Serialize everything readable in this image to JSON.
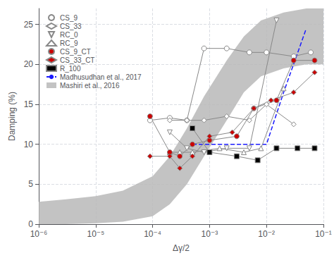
{
  "chart_data": {
    "type": "line",
    "xlabel": "Δγ/2",
    "ylabel": "Damping (%)",
    "log": "x",
    "xlim": [
      1e-06,
      0.1
    ],
    "xticks": [
      {
        "value": 1e-06,
        "label": "10⁻⁶"
      },
      {
        "value": 1e-05,
        "label": "10⁻⁵"
      },
      {
        "value": 0.0001,
        "label": "10⁻⁴"
      },
      {
        "value": 0.001,
        "label": "10⁻³"
      },
      {
        "value": 0.01,
        "label": "10⁻²"
      },
      {
        "value": 0.1,
        "label": "10⁻¹"
      }
    ],
    "ylim": [
      0,
      27
    ],
    "yticks": [
      0,
      5,
      10,
      15,
      20,
      25
    ],
    "grid": true,
    "legend": "upper left",
    "color": "#888888",
    "series": [
      {
        "name": "CS_9",
        "type": "line",
        "marker": "circle",
        "color": "#ffffff",
        "x": [
          9e-05,
          0.0002,
          0.0004,
          0.0008,
          0.002,
          0.005,
          0.01,
          0.03,
          0.06
        ],
        "values": [
          13.0,
          13.3,
          13.0,
          22.0,
          22.0,
          21.5,
          21.5,
          21.0,
          21.5
        ]
      },
      {
        "name": "CS_33",
        "type": "line",
        "marker": "diamond",
        "color": "#ffffff",
        "x": [
          0.0002,
          0.0004,
          0.0008,
          0.002,
          0.005,
          0.01,
          0.03
        ],
        "values": [
          13.0,
          13.0,
          13.0,
          13.5,
          13.0,
          15.0,
          12.5
        ]
      },
      {
        "name": "RC_0",
        "type": "line",
        "marker": "triangle_down",
        "color": "#ffffff",
        "x": [
          0.0002,
          0.0004,
          0.0008,
          0.002,
          0.005,
          0.015
        ],
        "values": [
          11.5,
          9.5,
          9.0,
          9.5,
          9.5,
          25.5
        ]
      },
      {
        "name": "RC_9",
        "type": "line",
        "marker": "triangle_up",
        "color": "#ffffff",
        "x": [
          0.0002,
          0.0003,
          0.0005,
          0.0015,
          0.004,
          0.008,
          0.02
        ],
        "values": [
          9.0,
          9.0,
          9.0,
          9.5,
          9.0,
          9.5,
          17.0
        ]
      },
      {
        "name": "CS_9_CT",
        "type": "line",
        "marker": "circle",
        "color": "#cc0000",
        "x": [
          9e-05,
          0.0002,
          0.0003,
          0.0005,
          0.001,
          0.003,
          0.006,
          0.015,
          0.03,
          0.07
        ],
        "values": [
          13.5,
          9.0,
          8.5,
          10.0,
          10.5,
          11.0,
          14.5,
          15.5,
          20.5,
          20.5
        ]
      },
      {
        "name": "CS_33_CT",
        "type": "line",
        "marker": "diamond",
        "color": "#cc0000",
        "x": [
          9e-05,
          0.0002,
          0.0003,
          0.0005,
          0.001,
          0.0025,
          0.006,
          0.012,
          0.03,
          0.07
        ],
        "values": [
          8.5,
          8.5,
          7.0,
          8.5,
          11.0,
          11.5,
          14.5,
          15.5,
          16.5,
          19.0
        ]
      },
      {
        "name": "R_100",
        "type": "line",
        "marker": "square",
        "color": "#000000",
        "x": [
          0.0005,
          0.001,
          0.003,
          0.007,
          0.015,
          0.035,
          0.07
        ],
        "values": [
          12.0,
          9.0,
          8.5,
          8.0,
          9.5,
          9.5,
          9.5
        ]
      },
      {
        "name": "Madhusudhan et al., 2017",
        "type": "line",
        "line_style": "dashed",
        "color": "#1a1aff",
        "x": [
          0.0005,
          0.001,
          0.002,
          0.005,
          0.01,
          0.02,
          0.05
        ],
        "values": [
          10.0,
          10.0,
          10.0,
          10.0,
          10.0,
          16.5,
          24.5
        ]
      },
      {
        "name": "Mashiri et al., 2016",
        "type": "band",
        "color": "#b8b8b8",
        "x": [
          1e-06,
          3e-06,
          1e-05,
          3e-05,
          0.0001,
          0.0002,
          0.0004,
          0.0008,
          0.002,
          0.004,
          0.008,
          0.02,
          0.05,
          0.1
        ],
        "lower": [
          0.0,
          0.0,
          0.1,
          0.3,
          1.0,
          2.5,
          5.0,
          8.5,
          13.0,
          16.5,
          18.5,
          19.5,
          20.0,
          20.0
        ],
        "upper": [
          2.8,
          3.1,
          3.5,
          4.2,
          6.0,
          8.5,
          12.0,
          16.0,
          20.5,
          23.5,
          25.5,
          26.5,
          27.0,
          27.0
        ]
      }
    ]
  }
}
